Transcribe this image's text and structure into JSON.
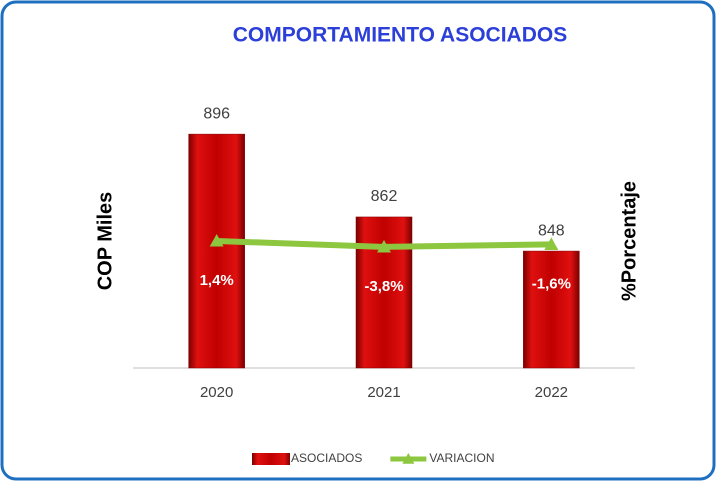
{
  "chart_data": {
    "type": "bar",
    "title": "COMPORTAMIENTO ASOCIADOS",
    "y_label": "COP Miles",
    "y2_label": "%Porcentaje",
    "categories": [
      "2020",
      "2021",
      "2022"
    ],
    "series": [
      {
        "name": "ASOCIADOS",
        "type": "bar",
        "color": "#c00000",
        "values": [
          896,
          862,
          848
        ]
      },
      {
        "name": "VARIACION",
        "type": "line",
        "axis": "y2",
        "color": "#8dc63f",
        "values": [
          1.4,
          -3.8,
          -1.6
        ],
        "value_labels": [
          "1,4%",
          "-3,8%",
          "-1,6%"
        ]
      }
    ],
    "ylim": [
      800,
      910
    ],
    "y2lim": [
      -110,
      125
    ],
    "legend": "bottom"
  }
}
